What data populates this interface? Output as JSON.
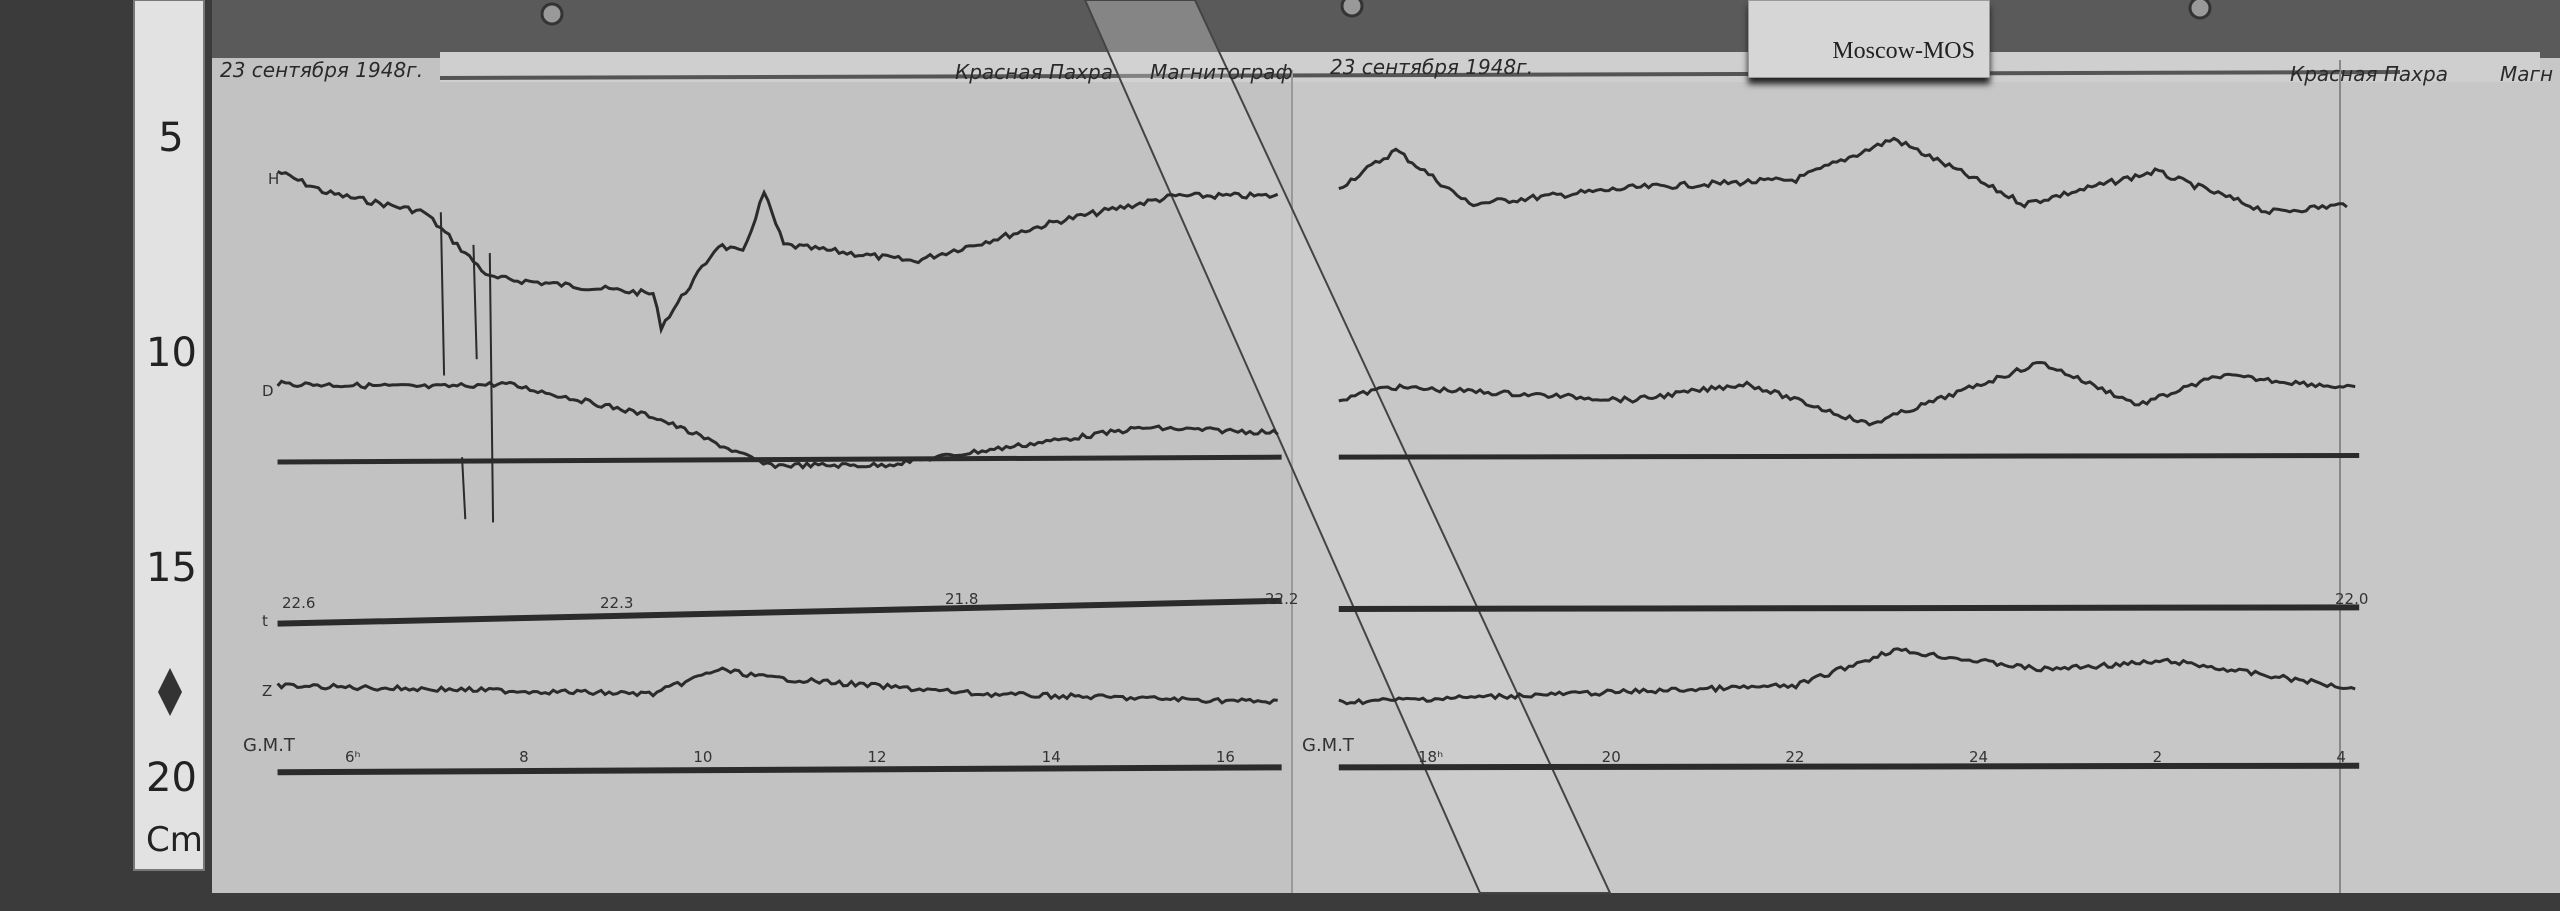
{
  "ruler": {
    "marks": [
      "5",
      "10",
      "15",
      "20"
    ],
    "unit": "Cm"
  },
  "station_label": "Moscow-MOS",
  "left_panel": {
    "date": "23 сентября 1948г.",
    "place": "Красная Пахра",
    "title": "Магнитограф",
    "time_label": "G.M.T",
    "hours": [
      "6ʰ",
      "8",
      "10",
      "12",
      "14",
      "16"
    ],
    "trace_labels": {
      "H": "H",
      "D": "D",
      "Z": "Z",
      "t": "t"
    },
    "temp_marks": [
      "22.6",
      "22.3",
      "21.8",
      "22.2"
    ]
  },
  "right_panel": {
    "date": "23 сентября 1948г.",
    "place": "Красная Пахра",
    "title": "Магн",
    "time_label": "G.M.T",
    "hours": [
      "18ʰ",
      "20",
      "22",
      "24",
      "2",
      "4"
    ],
    "temp_marks": [
      "22.0"
    ]
  },
  "colors": {
    "paper": "#c4c4c4",
    "trace": "#2b2b2b",
    "background": "#3a3a3a"
  }
}
